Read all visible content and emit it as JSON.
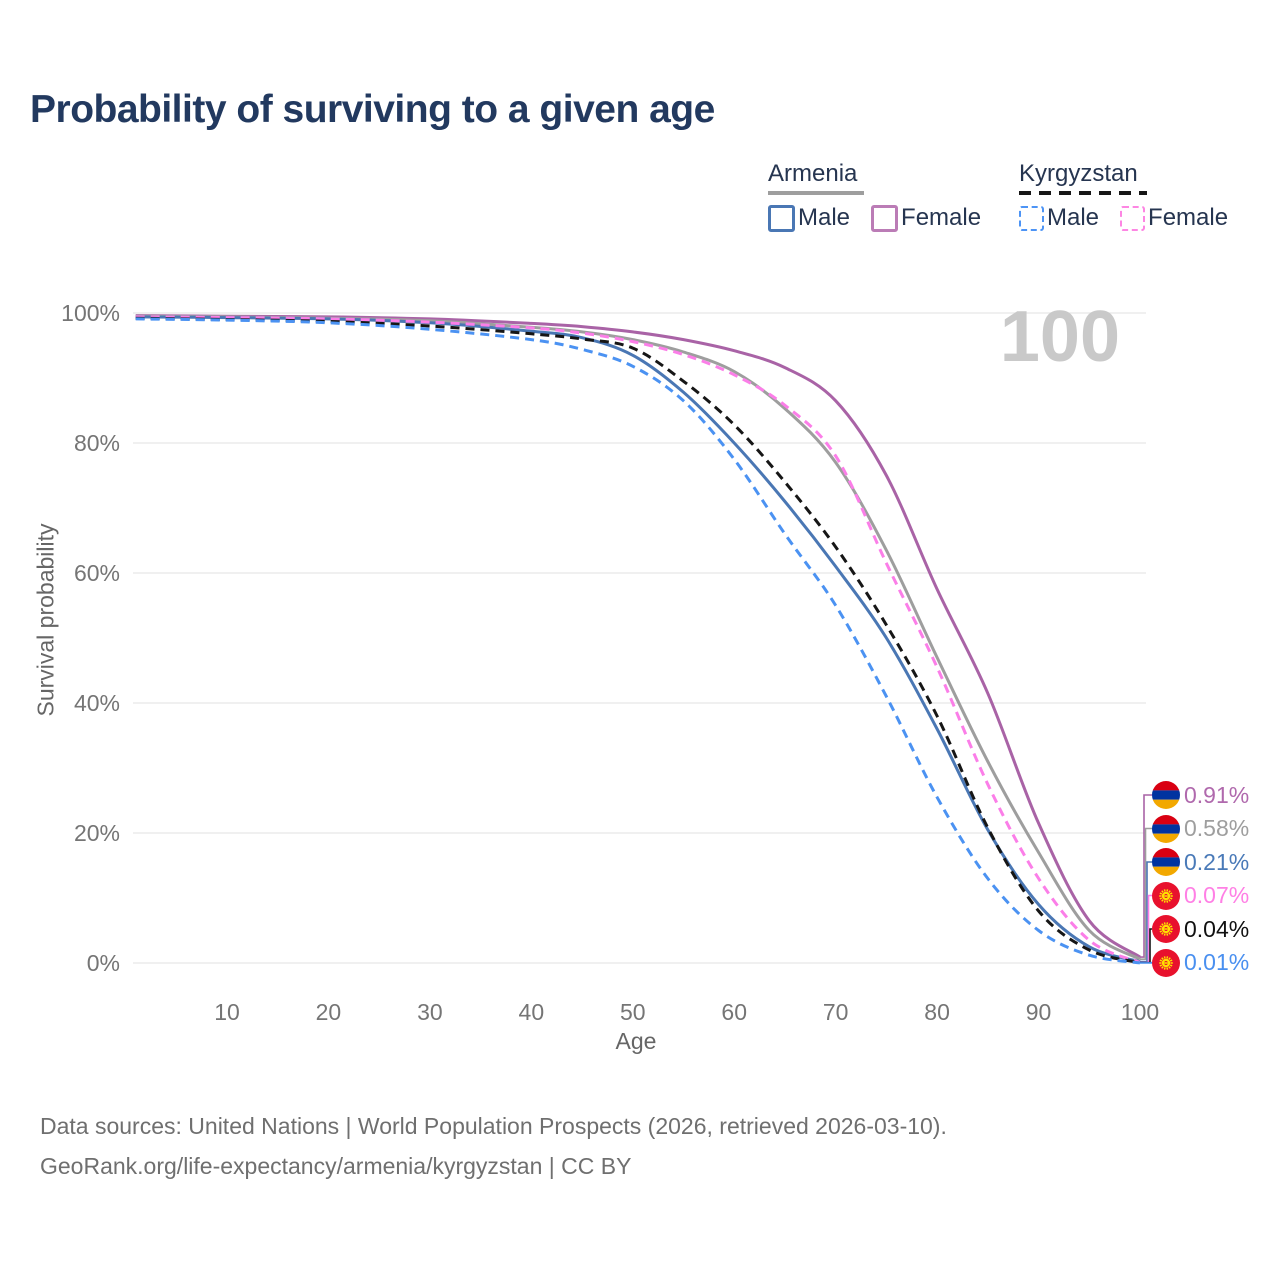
{
  "title": "Probability of surviving to a given age",
  "watermark": "100",
  "legend": {
    "groups": [
      {
        "label": "Armenia",
        "line_style": "solid",
        "rule_color": "#9e9e9e",
        "items": [
          {
            "label": "Male",
            "color": "#4a77b4"
          },
          {
            "label": "Female",
            "color": "#bb7cb6"
          }
        ]
      },
      {
        "label": "Kyrgyzstan",
        "line_style": "dashed",
        "rule_color": "#161616",
        "items": [
          {
            "label": "Male",
            "color": "#4d94f5"
          },
          {
            "label": "Female",
            "color": "#fd86e3"
          }
        ]
      }
    ]
  },
  "footer": {
    "line1": "Data sources: United Nations | World Population Prospects (2026, retrieved 2026-03-10).",
    "line2": "GeoRank.org/life-expectancy/armenia/kyrgyzstan | CC BY"
  },
  "flag_colors": {
    "armenia": [
      "#d90012",
      "#0033a0",
      "#f2a800"
    ],
    "kyrgyzstan": {
      "field": "#e8112d",
      "sun": "#ffdf00"
    }
  },
  "chart_data": {
    "type": "line",
    "title": "Probability of surviving to a given age",
    "xlabel": "Age",
    "ylabel": "Survival probability",
    "xlim": [
      1,
      100
    ],
    "ylim": [
      0,
      100
    ],
    "grid": "horizontal",
    "x_ticks": [
      10,
      20,
      30,
      40,
      50,
      60,
      70,
      80,
      90,
      100
    ],
    "y_ticks": [
      "0%",
      "20%",
      "40%",
      "60%",
      "80%",
      "100%"
    ],
    "ages": [
      1,
      10,
      20,
      30,
      40,
      45,
      50,
      55,
      60,
      65,
      70,
      75,
      80,
      85,
      90,
      95,
      100
    ],
    "series": [
      {
        "name": "Armenia Female",
        "country": "Armenia",
        "sex": "Female",
        "flag": "armenia",
        "color": "#a963a6",
        "dash": "solid",
        "end_label": "0.91%",
        "end_label_color": "#b069ad",
        "values": [
          99.6,
          99.5,
          99.4,
          99.1,
          98.4,
          97.9,
          97.1,
          95.9,
          94.2,
          91.6,
          86.5,
          75.0,
          57.5,
          41.5,
          21.5,
          6.5,
          0.91
        ]
      },
      {
        "name": "Armenia Both sexes",
        "country": "Armenia",
        "sex": "Both",
        "flag": "armenia",
        "color": "#9e9e9e",
        "dash": "solid",
        "end_label": "0.58%",
        "end_label_color": "#9e9e9e",
        "values": [
          99.5,
          99.4,
          99.2,
          98.8,
          97.8,
          97.1,
          95.9,
          94.0,
          91.0,
          85.3,
          77.0,
          63.5,
          47.0,
          31.0,
          17.0,
          5.0,
          0.58
        ]
      },
      {
        "name": "Armenia Male",
        "country": "Armenia",
        "sex": "Male",
        "flag": "armenia",
        "color": "#4a77b4",
        "dash": "solid",
        "end_label": "0.21%",
        "end_label_color": "#4a7ab8",
        "values": [
          99.4,
          99.3,
          99.1,
          98.5,
          97.2,
          96.2,
          93.5,
          87.8,
          80.0,
          71.0,
          61.0,
          50.0,
          36.0,
          20.5,
          9.0,
          2.5,
          0.21
        ]
      },
      {
        "name": "Kyrgyzstan Female",
        "country": "Kyrgyzstan",
        "sex": "Female",
        "flag": "kyrgyzstan",
        "color": "#fb7ee8",
        "dash": "dashed",
        "end_label": "0.07%",
        "end_label_color": "#ff80e5",
        "values": [
          99.4,
          99.3,
          99.1,
          98.6,
          97.7,
          96.9,
          95.6,
          93.6,
          90.5,
          85.8,
          78.0,
          61.5,
          45.5,
          27.5,
          13.0,
          3.5,
          0.07
        ]
      },
      {
        "name": "Kyrgyzstan Both sexes",
        "country": "Kyrgyzstan",
        "sex": "Both",
        "flag": "kyrgyzstan",
        "color": "#161616",
        "dash": "dashed",
        "end_label": "0.04%",
        "end_label_color": "#111111",
        "values": [
          99.2,
          99.0,
          98.7,
          98.0,
          96.8,
          96.0,
          94.6,
          89.5,
          82.8,
          74.0,
          64.0,
          52.0,
          38.0,
          20.8,
          8.0,
          2.0,
          0.04
        ]
      },
      {
        "name": "Kyrgyzstan Male",
        "country": "Kyrgyzstan",
        "sex": "Male",
        "flag": "kyrgyzstan",
        "color": "#4b92f2",
        "dash": "dashed",
        "end_label": "0.01%",
        "end_label_color": "#4a90f0",
        "values": [
          99.1,
          98.9,
          98.5,
          97.5,
          95.9,
          94.4,
          91.8,
          86.5,
          77.5,
          66.0,
          55.0,
          41.0,
          25.5,
          13.0,
          5.0,
          1.2,
          0.01
        ]
      }
    ]
  }
}
